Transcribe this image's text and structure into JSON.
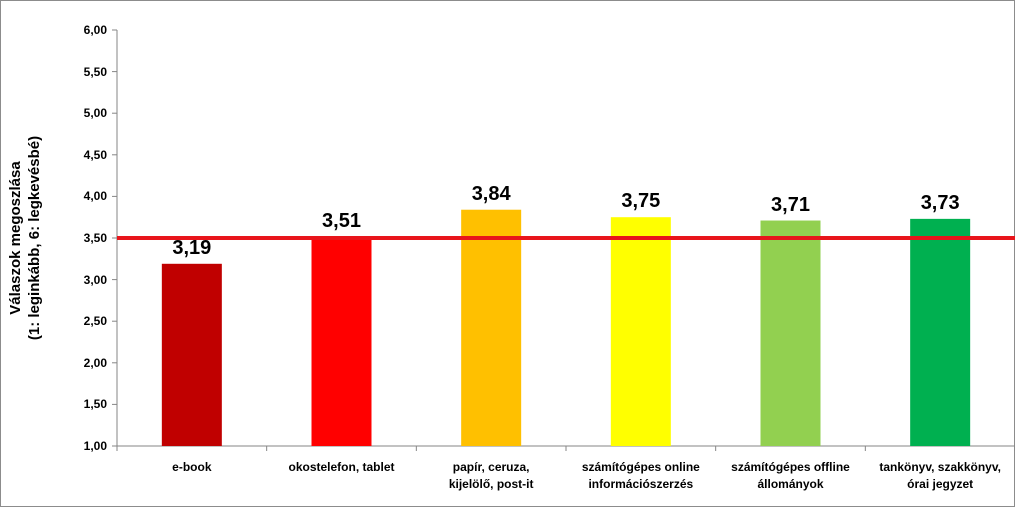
{
  "chart_data": {
    "type": "bar",
    "y_label": "Válaszok megoszlása\n(1: leginkább, 6: legkevésbé)",
    "categories": [
      "e-book",
      "okostelefon, tablet",
      "papír, ceruza,\nkijelölő, post-it",
      "számítógépes online\ninformációszerzés",
      "számítógépes offline\nállományok",
      "tankönyv, szakkönyv,\nórai jegyzet"
    ],
    "values": [
      3.19,
      3.51,
      3.84,
      3.75,
      3.71,
      3.73
    ],
    "value_labels": [
      "3,19",
      "3,51",
      "3,84",
      "3,75",
      "3,71",
      "3,73"
    ],
    "colors": [
      "#c00000",
      "#ff0000",
      "#ffc000",
      "#ffff00",
      "#92d050",
      "#00b050"
    ],
    "reference_line": {
      "value": 3.5,
      "color": "#e8151b"
    },
    "ylim": [
      1,
      6
    ],
    "yticks": [
      {
        "value": 1,
        "label": "1,00"
      },
      {
        "value": 1.5,
        "label": "1,50"
      },
      {
        "value": 2,
        "label": "2,00"
      },
      {
        "value": 2.5,
        "label": "2,50"
      },
      {
        "value": 3,
        "label": "3,00"
      },
      {
        "value": 3.5,
        "label": "3,50"
      },
      {
        "value": 4,
        "label": "4,00"
      },
      {
        "value": 4.5,
        "label": "4,50"
      },
      {
        "value": 5,
        "label": "5,00"
      },
      {
        "value": 5.5,
        "label": "5,50"
      },
      {
        "value": 6,
        "label": "6,00"
      }
    ],
    "grid": false
  }
}
